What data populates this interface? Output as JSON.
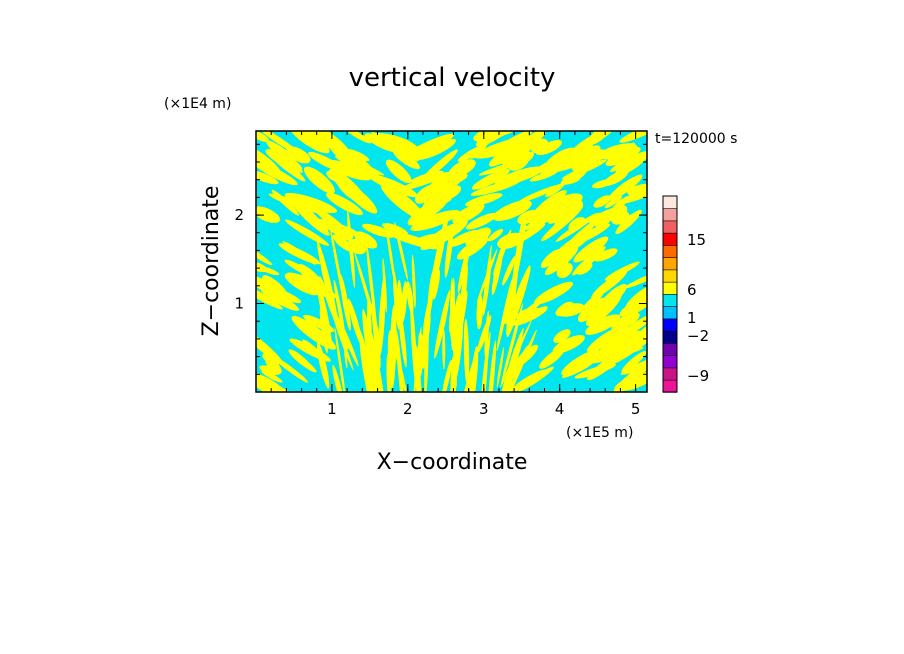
{
  "chart_data": {
    "type": "heatmap",
    "title": "vertical velocity",
    "xlabel": "X−coordinate",
    "ylabel": "Z−coordinate",
    "x_unit": "(×1E5 m)",
    "y_unit": "(×1E4 m)",
    "time_label": "t=120000 s",
    "xlim": [
      0,
      5.15
    ],
    "ylim": [
      0,
      2.95
    ],
    "x_ticks": [
      1,
      2,
      3,
      4,
      5
    ],
    "y_ticks": [
      1,
      2
    ],
    "field_colors": {
      "positive": "#ffff00",
      "negative": "#00e5ee"
    },
    "colorbar": {
      "tick_labels": [
        "15",
        "6",
        "1",
        "−2",
        "−9"
      ],
      "tick_values": [
        15,
        6,
        1,
        -2,
        -9
      ],
      "colors": [
        "#ee1299",
        "#c71585",
        "#9400d3",
        "#7000b0",
        "#00008b",
        "#0000ff",
        "#00bfff",
        "#00e5ee",
        "#ffff00",
        "#ffd700",
        "#ffa500",
        "#ff6a00",
        "#ff0000",
        "#f06060",
        "#f5a0a0",
        "#fde8e0"
      ]
    }
  }
}
